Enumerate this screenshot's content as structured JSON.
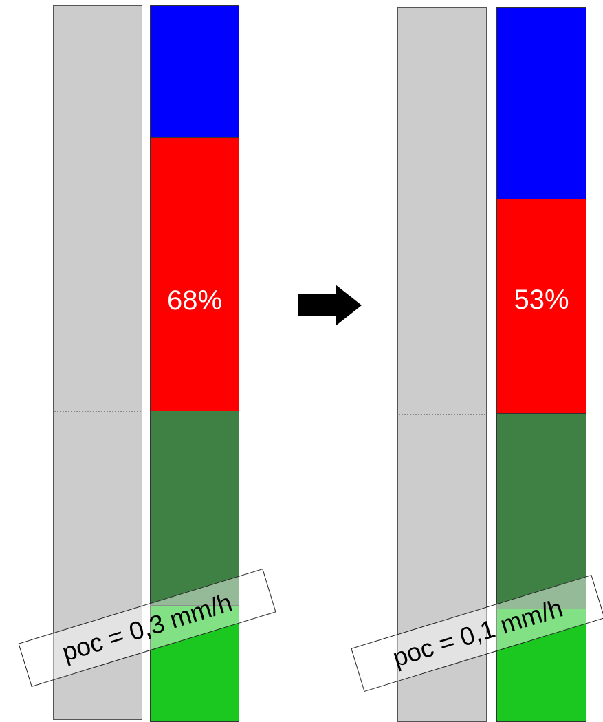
{
  "before": {
    "percent_label": "68%",
    "rate_label": "poc = 0,3 mm/h"
  },
  "after": {
    "percent_label": "53%",
    "rate_label": "poc = 0,1 mm/h"
  },
  "colors": {
    "blue": "#0000ff",
    "red": "#ff0000",
    "dark_green": "#3f8144",
    "bright_green": "#1ac81f",
    "gray": "#cccccc",
    "arrow": "#000000"
  },
  "icons": {
    "arrow": "right-arrow-icon"
  }
}
